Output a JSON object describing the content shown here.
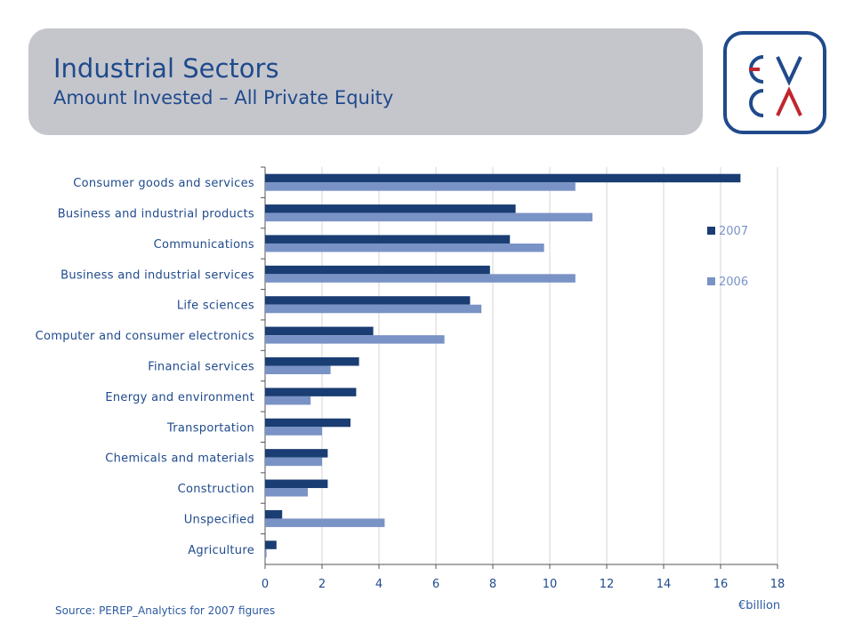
{
  "header": {
    "title": "Industrial Sectors",
    "subtitle": "Amount Invested – All Private Equity"
  },
  "logo": {
    "top_letters": "EV",
    "bottom_letters": "CΛ",
    "accent": "#c0262d",
    "brand": "#1f4a8c"
  },
  "footer": {
    "source": "Source: PEREP_Analytics  for 2007 figures",
    "unit": "€billion"
  },
  "colors": {
    "series_2007": "#1a3d73",
    "series_2006": "#7a93c6",
    "text": "#1f4a8c",
    "grid": "#d6d6d6"
  },
  "chart_data": {
    "type": "bar",
    "orientation": "horizontal",
    "categories": [
      "Consumer goods and services",
      "Business and industrial products",
      "Communications",
      "Business and industrial services",
      "Life sciences",
      "Computer and consumer electronics",
      "Financial services",
      "Energy and environment",
      "Transportation",
      "Chemicals and materials",
      "Construction",
      "Unspecified",
      "Agriculture"
    ],
    "series": [
      {
        "name": "2007",
        "values": [
          16.7,
          8.8,
          8.6,
          7.9,
          7.2,
          3.8,
          3.3,
          3.2,
          3.0,
          2.2,
          2.2,
          0.6,
          0.4
        ]
      },
      {
        "name": "2006",
        "values": [
          10.9,
          11.5,
          9.8,
          10.9,
          7.6,
          6.3,
          2.3,
          1.6,
          2.0,
          2.0,
          1.5,
          4.2,
          0.05
        ]
      }
    ],
    "xlim": [
      0,
      18
    ],
    "xticks": [
      "0",
      "2",
      "4",
      "6",
      "8",
      "10",
      "12",
      "14",
      "16",
      "18"
    ],
    "grid": true,
    "legend_position": "right"
  }
}
